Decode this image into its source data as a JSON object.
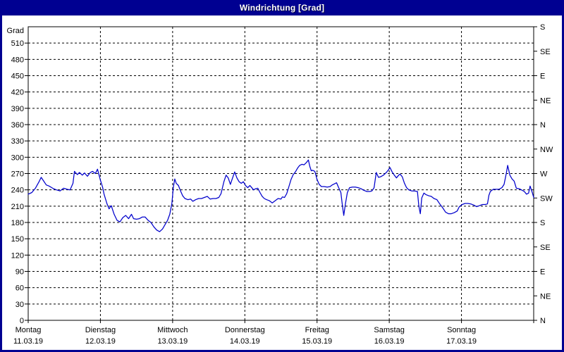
{
  "window": {
    "title": "Windrichtung [Grad]"
  },
  "colors": {
    "titlebar_bg": "#000091",
    "titlebar_text": "#ffffff",
    "window_border": "#000091",
    "plot_background": "#ffffff",
    "grid_color": "#000000",
    "line_color": "#0000CC"
  },
  "chart_data": {
    "type": "line",
    "title": "Windrichtung [Grad]",
    "grid": "dashed",
    "y_left": {
      "label": "Grad",
      "min": 0,
      "max": 540,
      "tick_step": 30,
      "ticks": [
        0,
        30,
        60,
        90,
        120,
        150,
        180,
        210,
        240,
        270,
        300,
        330,
        360,
        390,
        420,
        450,
        480,
        510
      ]
    },
    "y_right": {
      "ticks": [
        {
          "deg": 0,
          "label": "N"
        },
        {
          "deg": 45,
          "label": "NE"
        },
        {
          "deg": 90,
          "label": "E"
        },
        {
          "deg": 135,
          "label": "SE"
        },
        {
          "deg": 180,
          "label": "S"
        },
        {
          "deg": 225,
          "label": "SW"
        },
        {
          "deg": 270,
          "label": "W"
        },
        {
          "deg": 315,
          "label": "NW"
        },
        {
          "deg": 360,
          "label": "N"
        },
        {
          "deg": 405,
          "label": "NE"
        },
        {
          "deg": 450,
          "label": "E"
        },
        {
          "deg": 495,
          "label": "SE"
        },
        {
          "deg": 540,
          "label": "S"
        }
      ]
    },
    "x_axis": {
      "days": [
        {
          "name": "Montag",
          "date": "11.03.19"
        },
        {
          "name": "Dienstag",
          "date": "12.03.19"
        },
        {
          "name": "Mittwoch",
          "date": "13.03.19"
        },
        {
          "name": "Donnerstag",
          "date": "14.03.19"
        },
        {
          "name": "Freitag",
          "date": "15.03.19"
        },
        {
          "name": "Samstag",
          "date": "16.03.19"
        },
        {
          "name": "Sonntag",
          "date": "17.03.19"
        }
      ]
    },
    "series": [
      {
        "name": "Windrichtung",
        "color": "#0000CC",
        "points": [
          [
            0,
            232
          ],
          [
            0.05,
            235
          ],
          [
            0.1,
            243
          ],
          [
            0.15,
            255
          ],
          [
            0.18,
            263
          ],
          [
            0.21,
            257
          ],
          [
            0.25,
            249
          ],
          [
            0.29,
            247
          ],
          [
            0.34,
            243
          ],
          [
            0.39,
            240
          ],
          [
            0.44,
            238
          ],
          [
            0.49,
            243
          ],
          [
            0.54,
            241
          ],
          [
            0.58,
            240
          ],
          [
            0.62,
            252
          ],
          [
            0.64,
            274
          ],
          [
            0.68,
            268
          ],
          [
            0.71,
            272
          ],
          [
            0.75,
            267
          ],
          [
            0.78,
            271
          ],
          [
            0.82,
            265
          ],
          [
            0.86,
            272
          ],
          [
            0.89,
            274
          ],
          [
            0.93,
            270
          ],
          [
            0.96,
            278
          ],
          [
            1.0,
            258
          ],
          [
            1.03,
            245
          ],
          [
            1.05,
            232
          ],
          [
            1.09,
            215
          ],
          [
            1.12,
            205
          ],
          [
            1.15,
            211
          ],
          [
            1.19,
            195
          ],
          [
            1.23,
            184
          ],
          [
            1.27,
            181
          ],
          [
            1.31,
            189
          ],
          [
            1.35,
            193
          ],
          [
            1.39,
            187
          ],
          [
            1.43,
            195
          ],
          [
            1.46,
            187
          ],
          [
            1.5,
            186
          ],
          [
            1.54,
            187
          ],
          [
            1.58,
            190
          ],
          [
            1.62,
            190
          ],
          [
            1.66,
            184
          ],
          [
            1.7,
            180
          ],
          [
            1.74,
            172
          ],
          [
            1.78,
            166
          ],
          [
            1.82,
            163
          ],
          [
            1.86,
            168
          ],
          [
            1.89,
            175
          ],
          [
            1.93,
            184
          ],
          [
            1.96,
            195
          ],
          [
            1.99,
            215
          ],
          [
            2.01,
            245
          ],
          [
            2.03,
            260
          ],
          [
            2.05,
            252
          ],
          [
            2.08,
            248
          ],
          [
            2.11,
            238
          ],
          [
            2.14,
            229
          ],
          [
            2.17,
            224
          ],
          [
            2.21,
            222
          ],
          [
            2.25,
            223
          ],
          [
            2.28,
            219
          ],
          [
            2.32,
            222
          ],
          [
            2.36,
            224
          ],
          [
            2.4,
            224
          ],
          [
            2.44,
            226
          ],
          [
            2.48,
            228
          ],
          [
            2.52,
            223
          ],
          [
            2.56,
            224
          ],
          [
            2.6,
            224
          ],
          [
            2.64,
            226
          ],
          [
            2.67,
            233
          ],
          [
            2.71,
            255
          ],
          [
            2.74,
            267
          ],
          [
            2.77,
            262
          ],
          [
            2.8,
            250
          ],
          [
            2.83,
            262
          ],
          [
            2.86,
            273
          ],
          [
            2.89,
            262
          ],
          [
            2.92,
            255
          ],
          [
            2.95,
            252
          ],
          [
            2.98,
            255
          ],
          [
            3.01,
            248
          ],
          [
            3.04,
            244
          ],
          [
            3.07,
            248
          ],
          [
            3.09,
            245
          ],
          [
            3.12,
            240
          ],
          [
            3.15,
            242
          ],
          [
            3.18,
            243
          ],
          [
            3.21,
            235
          ],
          [
            3.24,
            228
          ],
          [
            3.27,
            224
          ],
          [
            3.3,
            222
          ],
          [
            3.34,
            220
          ],
          [
            3.38,
            216
          ],
          [
            3.42,
            220
          ],
          [
            3.46,
            224
          ],
          [
            3.5,
            223
          ],
          [
            3.52,
            227
          ],
          [
            3.55,
            226
          ],
          [
            3.58,
            233
          ],
          [
            3.61,
            246
          ],
          [
            3.64,
            259
          ],
          [
            3.67,
            268
          ],
          [
            3.7,
            273
          ],
          [
            3.73,
            280
          ],
          [
            3.76,
            285
          ],
          [
            3.79,
            287
          ],
          [
            3.82,
            286
          ],
          [
            3.85,
            290
          ],
          [
            3.88,
            295
          ],
          [
            3.9,
            283
          ],
          [
            3.92,
            275
          ],
          [
            3.94,
            276
          ],
          [
            3.97,
            274
          ],
          [
            4.0,
            259
          ],
          [
            4.03,
            250
          ],
          [
            4.06,
            246
          ],
          [
            4.1,
            246
          ],
          [
            4.14,
            245
          ],
          [
            4.18,
            246
          ],
          [
            4.21,
            249
          ],
          [
            4.24,
            251
          ],
          [
            4.27,
            253
          ],
          [
            4.3,
            244
          ],
          [
            4.33,
            235
          ],
          [
            4.35,
            212
          ],
          [
            4.37,
            193
          ],
          [
            4.39,
            212
          ],
          [
            4.42,
            235
          ],
          [
            4.45,
            244
          ],
          [
            4.49,
            245
          ],
          [
            4.53,
            245
          ],
          [
            4.57,
            244
          ],
          [
            4.61,
            242
          ],
          [
            4.65,
            239
          ],
          [
            4.69,
            237
          ],
          [
            4.73,
            237
          ],
          [
            4.76,
            238
          ],
          [
            4.79,
            244
          ],
          [
            4.82,
            272
          ],
          [
            4.85,
            263
          ],
          [
            4.88,
            264
          ],
          [
            4.92,
            267
          ],
          [
            4.96,
            272
          ],
          [
            4.99,
            277
          ],
          [
            5.01,
            281
          ],
          [
            5.04,
            273
          ],
          [
            5.07,
            267
          ],
          [
            5.1,
            262
          ],
          [
            5.13,
            267
          ],
          [
            5.15,
            269
          ],
          [
            5.18,
            264
          ],
          [
            5.21,
            252
          ],
          [
            5.24,
            244
          ],
          [
            5.27,
            240
          ],
          [
            5.31,
            238
          ],
          [
            5.35,
            238
          ],
          [
            5.39,
            237
          ],
          [
            5.41,
            210
          ],
          [
            5.43,
            196
          ],
          [
            5.45,
            225
          ],
          [
            5.48,
            234
          ],
          [
            5.51,
            231
          ],
          [
            5.55,
            229
          ],
          [
            5.58,
            228
          ],
          [
            5.62,
            224
          ],
          [
            5.66,
            222
          ],
          [
            5.7,
            214
          ],
          [
            5.74,
            207
          ],
          [
            5.78,
            199
          ],
          [
            5.82,
            196
          ],
          [
            5.86,
            196
          ],
          [
            5.9,
            198
          ],
          [
            5.94,
            201
          ],
          [
            5.97,
            209
          ],
          [
            6.01,
            213
          ],
          [
            6.05,
            215
          ],
          [
            6.09,
            215
          ],
          [
            6.13,
            214
          ],
          [
            6.17,
            212
          ],
          [
            6.21,
            209
          ],
          [
            6.25,
            211
          ],
          [
            6.29,
            213
          ],
          [
            6.33,
            213
          ],
          [
            6.36,
            214
          ],
          [
            6.38,
            230
          ],
          [
            6.4,
            237
          ],
          [
            6.44,
            241
          ],
          [
            6.48,
            241
          ],
          [
            6.52,
            241
          ],
          [
            6.56,
            244
          ],
          [
            6.59,
            250
          ],
          [
            6.62,
            270
          ],
          [
            6.64,
            285
          ],
          [
            6.67,
            267
          ],
          [
            6.7,
            260
          ],
          [
            6.73,
            256
          ],
          [
            6.76,
            243
          ],
          [
            6.8,
            242
          ],
          [
            6.83,
            240
          ],
          [
            6.87,
            237
          ],
          [
            6.9,
            232
          ],
          [
            6.93,
            234
          ],
          [
            6.95,
            247
          ],
          [
            6.98,
            235
          ],
          [
            7.0,
            226
          ]
        ]
      }
    ]
  }
}
